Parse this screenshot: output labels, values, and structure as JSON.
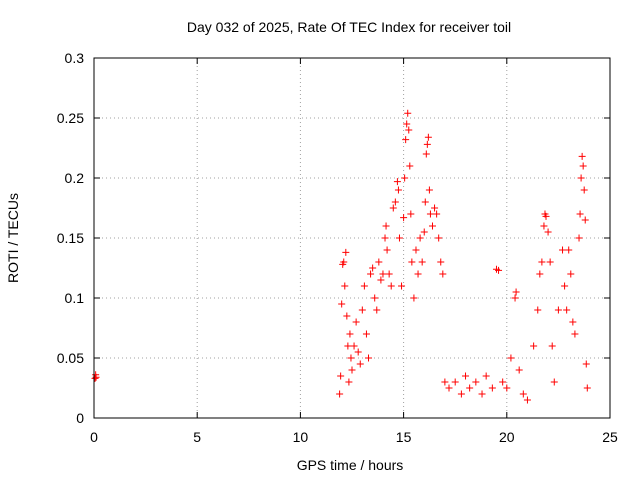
{
  "chart_data": {
    "type": "scatter",
    "title": "Day 032 of 2025, Rate Of TEC Index for receiver toil",
    "xlabel": "GPS time / hours",
    "ylabel": "ROTI / TECUs",
    "xlim": [
      0,
      25
    ],
    "ylim": [
      0,
      0.3
    ],
    "x_ticks": [
      0,
      5,
      10,
      15,
      20,
      25
    ],
    "y_ticks": [
      0,
      0.05,
      0.1,
      0.15,
      0.2,
      0.25,
      0.3
    ],
    "x_tick_labels": [
      "0",
      "5",
      "10",
      "15",
      "20",
      "25"
    ],
    "y_tick_labels": [
      "0",
      "0.05",
      "0.1",
      "0.15",
      "0.2",
      "0.25",
      "0.3"
    ],
    "grid": true,
    "marker": "+",
    "marker_color": "#ff0000",
    "series": [
      {
        "name": "",
        "points": [
          [
            0.05,
            0.033
          ],
          [
            0.08,
            0.036
          ],
          [
            0.1,
            0.034
          ],
          [
            11.9,
            0.02
          ],
          [
            11.95,
            0.035
          ],
          [
            12.0,
            0.095
          ],
          [
            12.05,
            0.128
          ],
          [
            12.1,
            0.13
          ],
          [
            12.15,
            0.11
          ],
          [
            12.2,
            0.138
          ],
          [
            12.25,
            0.085
          ],
          [
            12.3,
            0.06
          ],
          [
            12.35,
            0.03
          ],
          [
            12.4,
            0.07
          ],
          [
            12.45,
            0.05
          ],
          [
            12.5,
            0.04
          ],
          [
            12.6,
            0.06
          ],
          [
            12.7,
            0.08
          ],
          [
            12.8,
            0.055
          ],
          [
            12.9,
            0.045
          ],
          [
            13.0,
            0.09
          ],
          [
            13.1,
            0.11
          ],
          [
            13.2,
            0.07
          ],
          [
            13.3,
            0.05
          ],
          [
            13.4,
            0.12
          ],
          [
            13.5,
            0.125
          ],
          [
            13.6,
            0.1
          ],
          [
            13.7,
            0.09
          ],
          [
            13.8,
            0.13
          ],
          [
            13.9,
            0.115
          ],
          [
            14.0,
            0.12
          ],
          [
            14.1,
            0.15
          ],
          [
            14.15,
            0.16
          ],
          [
            14.2,
            0.14
          ],
          [
            14.3,
            0.12
          ],
          [
            14.4,
            0.11
          ],
          [
            14.5,
            0.175
          ],
          [
            14.6,
            0.18
          ],
          [
            14.7,
            0.197
          ],
          [
            14.75,
            0.19
          ],
          [
            14.8,
            0.15
          ],
          [
            14.9,
            0.11
          ],
          [
            15.0,
            0.167
          ],
          [
            15.05,
            0.2
          ],
          [
            15.1,
            0.232
          ],
          [
            15.15,
            0.245
          ],
          [
            15.2,
            0.254
          ],
          [
            15.25,
            0.24
          ],
          [
            15.3,
            0.21
          ],
          [
            15.35,
            0.17
          ],
          [
            15.4,
            0.13
          ],
          [
            15.5,
            0.1
          ],
          [
            15.6,
            0.14
          ],
          [
            15.7,
            0.12
          ],
          [
            15.8,
            0.15
          ],
          [
            15.9,
            0.13
          ],
          [
            16.0,
            0.155
          ],
          [
            16.05,
            0.18
          ],
          [
            16.1,
            0.22
          ],
          [
            16.15,
            0.228
          ],
          [
            16.2,
            0.234
          ],
          [
            16.25,
            0.19
          ],
          [
            16.3,
            0.17
          ],
          [
            16.4,
            0.16
          ],
          [
            16.5,
            0.175
          ],
          [
            16.6,
            0.17
          ],
          [
            16.7,
            0.15
          ],
          [
            16.8,
            0.13
          ],
          [
            16.9,
            0.12
          ],
          [
            17.0,
            0.03
          ],
          [
            17.2,
            0.025
          ],
          [
            17.5,
            0.03
          ],
          [
            17.8,
            0.02
          ],
          [
            18.0,
            0.035
          ],
          [
            18.2,
            0.025
          ],
          [
            18.5,
            0.03
          ],
          [
            18.8,
            0.02
          ],
          [
            19.0,
            0.035
          ],
          [
            19.3,
            0.025
          ],
          [
            19.5,
            0.124
          ],
          [
            19.6,
            0.123
          ],
          [
            19.8,
            0.03
          ],
          [
            20.0,
            0.025
          ],
          [
            20.2,
            0.05
          ],
          [
            20.4,
            0.1
          ],
          [
            20.45,
            0.105
          ],
          [
            20.6,
            0.04
          ],
          [
            20.8,
            0.02
          ],
          [
            21.0,
            0.015
          ],
          [
            21.3,
            0.06
          ],
          [
            21.5,
            0.09
          ],
          [
            21.6,
            0.12
          ],
          [
            21.7,
            0.13
          ],
          [
            21.8,
            0.16
          ],
          [
            21.85,
            0.17
          ],
          [
            21.9,
            0.168
          ],
          [
            22.0,
            0.155
          ],
          [
            22.1,
            0.13
          ],
          [
            22.2,
            0.06
          ],
          [
            22.3,
            0.03
          ],
          [
            22.5,
            0.09
          ],
          [
            22.7,
            0.14
          ],
          [
            22.8,
            0.11
          ],
          [
            22.9,
            0.09
          ],
          [
            23.0,
            0.14
          ],
          [
            23.1,
            0.12
          ],
          [
            23.2,
            0.08
          ],
          [
            23.3,
            0.07
          ],
          [
            23.5,
            0.15
          ],
          [
            23.55,
            0.17
          ],
          [
            23.6,
            0.2
          ],
          [
            23.65,
            0.218
          ],
          [
            23.7,
            0.21
          ],
          [
            23.75,
            0.19
          ],
          [
            23.8,
            0.165
          ],
          [
            23.85,
            0.045
          ],
          [
            23.9,
            0.025
          ]
        ]
      }
    ]
  }
}
